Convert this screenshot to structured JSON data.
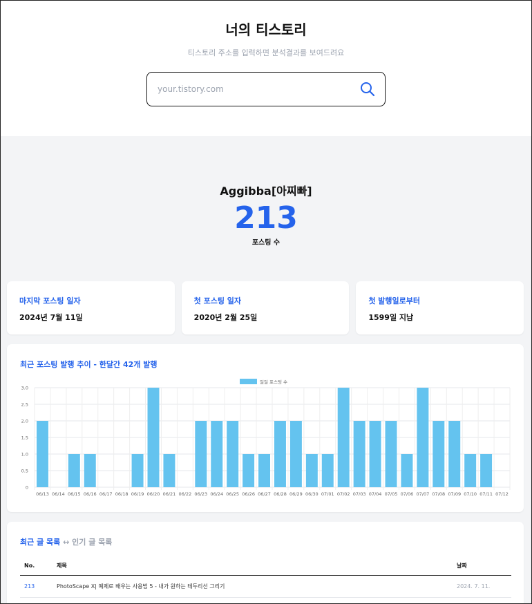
{
  "header": {
    "title": "너의 티스토리",
    "subtitle": "티스토리 주소를 입력하면 분석결과를 보여드려요",
    "search_placeholder": "your.tistory.com"
  },
  "profile": {
    "blog_name": "Aggibba[아찌빠]",
    "post_count": "213",
    "post_count_label": "포스팅 수"
  },
  "stats": [
    {
      "label": "마지막 포스팅 일자",
      "value": "2024년 7월 11일"
    },
    {
      "label": "첫 포스팅 일자",
      "value": "2020년 2월 25일"
    },
    {
      "label": "첫 발행일로부터",
      "value": "1599일 지남"
    }
  ],
  "chart_section_title": "최근 포스팅 발행 추이 - 한달간 42개 발행",
  "chart_data": {
    "type": "bar",
    "categories": [
      "06/13",
      "06/14",
      "06/15",
      "06/16",
      "06/17",
      "06/18",
      "06/19",
      "06/20",
      "06/21",
      "06/22",
      "06/23",
      "06/24",
      "06/25",
      "06/26",
      "06/27",
      "06/28",
      "06/29",
      "06/30",
      "07/01",
      "07/02",
      "07/03",
      "07/04",
      "07/05",
      "07/06",
      "07/07",
      "07/08",
      "07/09",
      "07/10",
      "07/11",
      "07/12"
    ],
    "series": [
      {
        "name": "일일 포스팅 수",
        "values": [
          2,
          0,
          1,
          1,
          0,
          0,
          1,
          3,
          1,
          0,
          2,
          2,
          2,
          1,
          1,
          2,
          2,
          1,
          1,
          3,
          2,
          2,
          2,
          1,
          3,
          2,
          2,
          1,
          1,
          0
        ]
      }
    ],
    "ylim": [
      0,
      3
    ],
    "yticks": [
      "0",
      "0.5",
      "1.0",
      "1.5",
      "2.0",
      "2.5",
      "3.0"
    ],
    "legend_position": "top",
    "bar_color": "#64c3ef",
    "grid": true
  },
  "posts": {
    "tab_recent": "최근 글 목록",
    "tab_separator": "↔",
    "tab_popular": "인기 글 목록",
    "columns": {
      "no": "No.",
      "title": "제목",
      "date": "날짜"
    },
    "rows": [
      {
        "no": "213",
        "title": "PhotoScape X| 예제로 배우는 사용법 5 - 내가 원하는 테두리선 그리기",
        "date": "2024. 7. 11."
      }
    ]
  },
  "colors": {
    "accent": "#2563eb",
    "bar": "#64c3ef"
  }
}
